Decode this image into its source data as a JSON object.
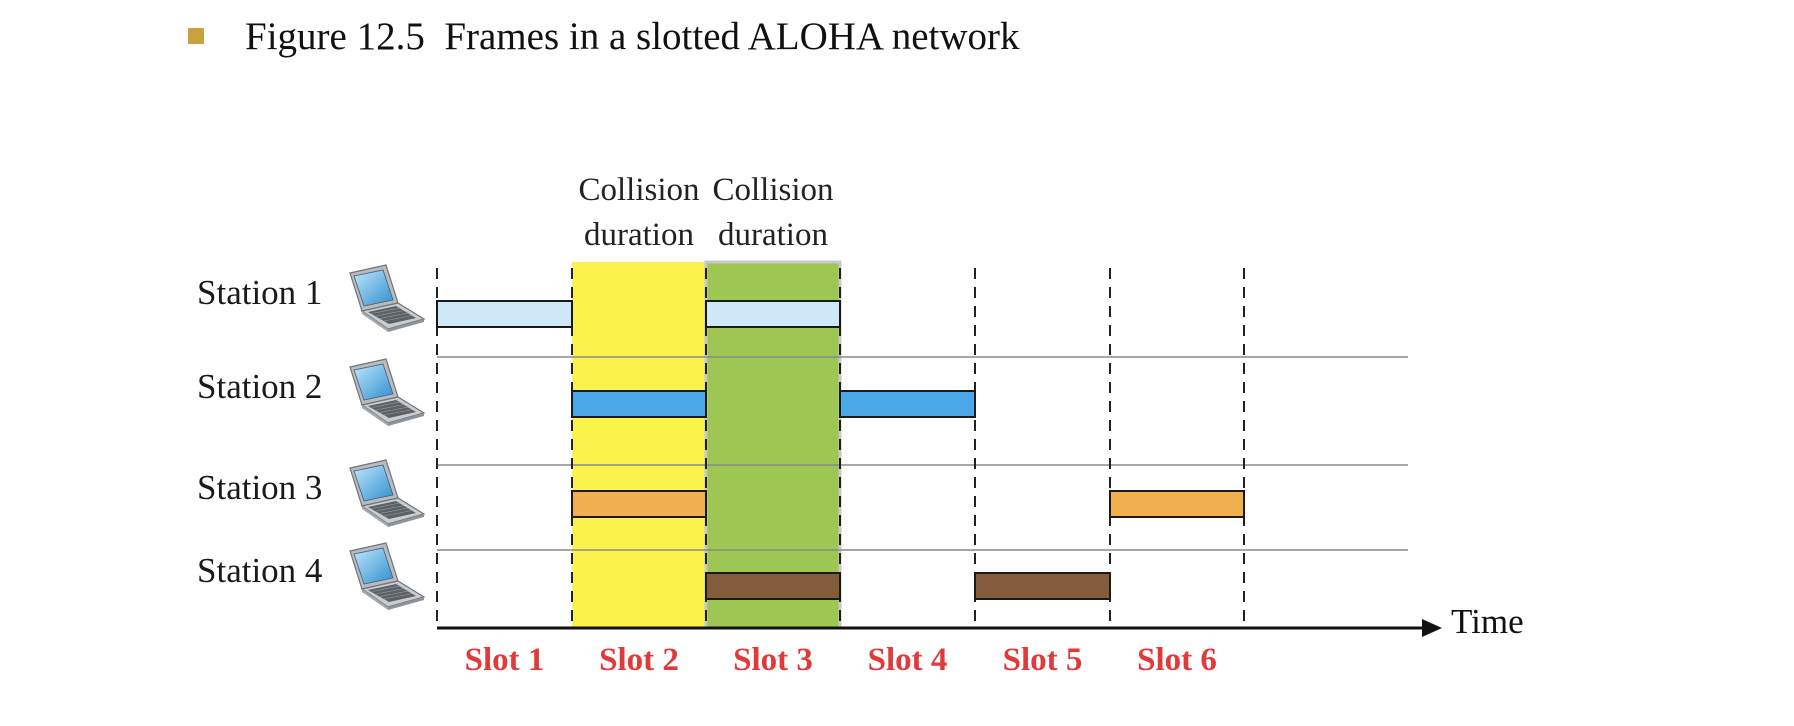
{
  "figure": {
    "title": "Figure 12.5  Frames in a slotted ALOHA network",
    "bullet_color": "#C9A23F"
  },
  "diagram": {
    "stations": [
      {
        "label": "Station 1",
        "icon": "laptop-icon"
      },
      {
        "label": "Station 2",
        "icon": "laptop-icon"
      },
      {
        "label": "Station 3",
        "icon": "laptop-icon"
      },
      {
        "label": "Station 4",
        "icon": "laptop-icon"
      }
    ],
    "slots": [
      "Slot 1",
      "Slot 2",
      "Slot 3",
      "Slot 4",
      "Slot 5",
      "Slot 6"
    ],
    "slot_label_color": "#E03A3A",
    "time_label": "Time",
    "collisions": [
      {
        "line1": "Collision",
        "line2": "duration",
        "slot": 2,
        "color": "#FBF24B"
      },
      {
        "line1": "Collision",
        "line2": "duration",
        "slot": 3,
        "color": "#9DC653"
      }
    ],
    "frames": [
      {
        "station": 1,
        "slot": 1,
        "color": "#CFE8F7"
      },
      {
        "station": 1,
        "slot": 3,
        "color": "#CFE8F7"
      },
      {
        "station": 2,
        "slot": 2,
        "color": "#4AA8E8"
      },
      {
        "station": 2,
        "slot": 4,
        "color": "#4AA8E8"
      },
      {
        "station": 3,
        "slot": 2,
        "color": "#F0B050"
      },
      {
        "station": 3,
        "slot": 6,
        "color": "#F0B050"
      },
      {
        "station": 4,
        "slot": 3,
        "color": "#835C3B"
      },
      {
        "station": 4,
        "slot": 5,
        "color": "#835C3B"
      }
    ]
  }
}
